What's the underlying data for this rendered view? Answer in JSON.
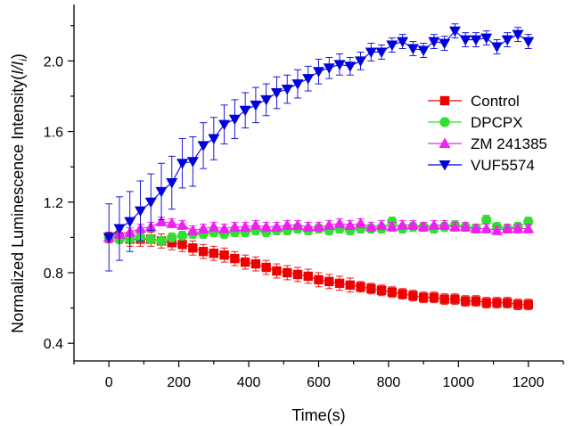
{
  "chart_data": {
    "type": "scatter",
    "xlabel": "Time(s)",
    "ylabel": {
      "main": "Normalized Luminescence Intensity(",
      "frac": "I/I",
      "sub": "i",
      "close": ")"
    },
    "xlim": [
      -100,
      1300
    ],
    "ylim": [
      0.3,
      2.32
    ],
    "xticks": [
      0,
      200,
      400,
      600,
      800,
      1000,
      1200
    ],
    "yticks": [
      0.4,
      0.8,
      1.2,
      1.6,
      2.0
    ],
    "ytick_labels": [
      "0.4",
      "0.8",
      "1.2",
      "1.6",
      "2.0"
    ],
    "legend_position": "right",
    "x": [
      0,
      30,
      60,
      90,
      120,
      150,
      180,
      210,
      240,
      270,
      300,
      330,
      360,
      390,
      420,
      450,
      480,
      510,
      540,
      570,
      600,
      630,
      660,
      690,
      720,
      750,
      780,
      810,
      840,
      870,
      900,
      930,
      960,
      990,
      1020,
      1050,
      1080,
      1110,
      1140,
      1170,
      1200
    ],
    "series": [
      {
        "name": "Control",
        "color": "#ee0000",
        "marker": "square",
        "values": [
          1.0,
          1.0,
          0.99,
          0.99,
          0.99,
          0.98,
          0.97,
          0.96,
          0.94,
          0.92,
          0.91,
          0.9,
          0.88,
          0.86,
          0.85,
          0.83,
          0.81,
          0.8,
          0.79,
          0.78,
          0.76,
          0.75,
          0.74,
          0.73,
          0.72,
          0.71,
          0.7,
          0.69,
          0.68,
          0.67,
          0.66,
          0.66,
          0.65,
          0.65,
          0.64,
          0.64,
          0.63,
          0.63,
          0.63,
          0.62,
          0.62
        ],
        "errors": [
          0.03,
          0.03,
          0.04,
          0.04,
          0.04,
          0.04,
          0.04,
          0.04,
          0.04,
          0.04,
          0.04,
          0.04,
          0.04,
          0.04,
          0.04,
          0.04,
          0.04,
          0.04,
          0.04,
          0.04,
          0.04,
          0.04,
          0.04,
          0.04,
          0.03,
          0.03,
          0.03,
          0.03,
          0.03,
          0.03,
          0.03,
          0.03,
          0.03,
          0.03,
          0.03,
          0.03,
          0.03,
          0.03,
          0.03,
          0.03,
          0.03
        ]
      },
      {
        "name": "DPCPX",
        "color": "#33dd33",
        "marker": "circle",
        "values": [
          1.0,
          0.99,
          0.99,
          1.0,
          0.99,
          0.98,
          1.0,
          1.01,
          1.02,
          1.02,
          1.03,
          1.02,
          1.03,
          1.03,
          1.04,
          1.03,
          1.04,
          1.04,
          1.05,
          1.04,
          1.05,
          1.04,
          1.05,
          1.04,
          1.05,
          1.05,
          1.05,
          1.09,
          1.05,
          1.06,
          1.06,
          1.05,
          1.06,
          1.07,
          1.06,
          1.05,
          1.1,
          1.06,
          1.05,
          1.06,
          1.09
        ]
      },
      {
        "name": "ZM 241385",
        "color": "#ee22ee",
        "marker": "triangle-up",
        "values": [
          1.0,
          1.02,
          1.03,
          1.05,
          1.06,
          1.09,
          1.08,
          1.07,
          1.04,
          1.05,
          1.06,
          1.05,
          1.06,
          1.06,
          1.07,
          1.06,
          1.06,
          1.07,
          1.07,
          1.06,
          1.06,
          1.07,
          1.08,
          1.07,
          1.08,
          1.06,
          1.07,
          1.06,
          1.07,
          1.07,
          1.06,
          1.07,
          1.07,
          1.06,
          1.06,
          1.05,
          1.05,
          1.04,
          1.05,
          1.05,
          1.05
        ]
      },
      {
        "name": "VUF5574",
        "color": "#0000dd",
        "marker": "triangle-down",
        "values": [
          1.0,
          1.05,
          1.09,
          1.15,
          1.2,
          1.26,
          1.31,
          1.42,
          1.43,
          1.52,
          1.56,
          1.64,
          1.67,
          1.72,
          1.75,
          1.78,
          1.82,
          1.84,
          1.87,
          1.9,
          1.94,
          1.96,
          1.98,
          1.97,
          2.0,
          2.05,
          2.05,
          2.09,
          2.11,
          2.07,
          2.06,
          2.11,
          2.1,
          2.17,
          2.12,
          2.12,
          2.13,
          2.08,
          2.12,
          2.15,
          2.11
        ],
        "errors": [
          0.19,
          0.18,
          0.17,
          0.17,
          0.16,
          0.16,
          0.15,
          0.14,
          0.14,
          0.13,
          0.12,
          0.11,
          0.11,
          0.1,
          0.1,
          0.09,
          0.09,
          0.08,
          0.08,
          0.07,
          0.07,
          0.06,
          0.06,
          0.05,
          0.05,
          0.05,
          0.04,
          0.04,
          0.04,
          0.04,
          0.04,
          0.04,
          0.04,
          0.04,
          0.04,
          0.04,
          0.04,
          0.04,
          0.04,
          0.04,
          0.04
        ]
      }
    ]
  }
}
